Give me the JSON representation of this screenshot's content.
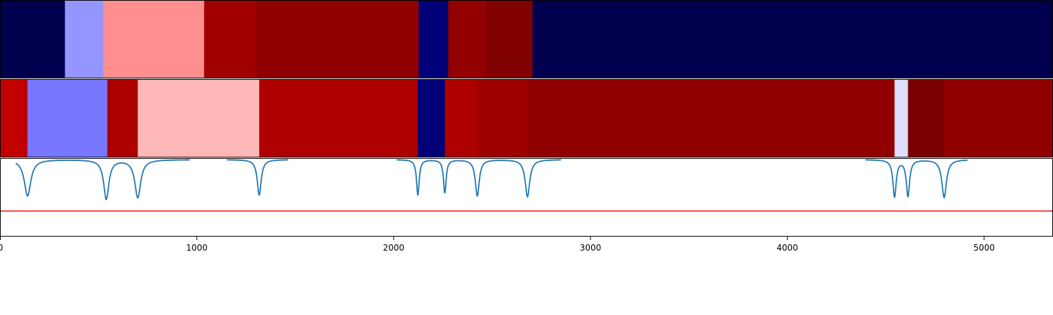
{
  "chart_data": {
    "type": "heatmap",
    "title": "",
    "xlabel": "",
    "ylabel": "",
    "xlim": [
      0,
      5350
    ],
    "x_ticks": [
      0,
      1000,
      2000,
      3000,
      4000,
      5000
    ],
    "x_tick_labels": [
      "0",
      "1000",
      "2000",
      "3000",
      "4000",
      "5000"
    ],
    "tracks": [
      {
        "kind": "segments",
        "segments": [
          {
            "start": 0,
            "end": 330,
            "color": "#00004f"
          },
          {
            "start": 330,
            "end": 525,
            "color": "#9595ff"
          },
          {
            "start": 525,
            "end": 1037,
            "color": "#ff8e8e"
          },
          {
            "start": 1037,
            "end": 1300,
            "color": "#a10000"
          },
          {
            "start": 1300,
            "end": 2127,
            "color": "#910000"
          },
          {
            "start": 2127,
            "end": 2277,
            "color": "#000078"
          },
          {
            "start": 2277,
            "end": 2470,
            "color": "#930000"
          },
          {
            "start": 2470,
            "end": 2705,
            "color": "#810000"
          },
          {
            "start": 2705,
            "end": 5350,
            "color": "#00004f"
          }
        ]
      },
      {
        "kind": "segments",
        "segments": [
          {
            "start": 0,
            "end": 140,
            "color": "#c20000"
          },
          {
            "start": 140,
            "end": 545,
            "color": "#7878ff"
          },
          {
            "start": 545,
            "end": 700,
            "color": "#ad0000"
          },
          {
            "start": 700,
            "end": 1317,
            "color": "#ffb8b8"
          },
          {
            "start": 1317,
            "end": 2123,
            "color": "#af0000"
          },
          {
            "start": 2123,
            "end": 2260,
            "color": "#000078"
          },
          {
            "start": 2260,
            "end": 2425,
            "color": "#af0000"
          },
          {
            "start": 2425,
            "end": 2680,
            "color": "#9e0000"
          },
          {
            "start": 2680,
            "end": 4545,
            "color": "#910000"
          },
          {
            "start": 4545,
            "end": 4613,
            "color": "#dedeff"
          },
          {
            "start": 4613,
            "end": 4797,
            "color": "#7b0000"
          },
          {
            "start": 4797,
            "end": 5350,
            "color": "#900000"
          }
        ]
      },
      {
        "kind": "line",
        "color": "#1f77b4",
        "ylim": [
          0,
          1
        ],
        "baseline": 1,
        "dips": [
          {
            "x": 140,
            "depth": 0.48,
            "width": 20
          },
          {
            "x": 540,
            "depth": 0.52,
            "width": 16
          },
          {
            "x": 700,
            "depth": 0.5,
            "width": 18
          },
          {
            "x": 1317,
            "depth": 0.47,
            "width": 12
          },
          {
            "x": 2123,
            "depth": 0.47,
            "width": 8
          },
          {
            "x": 2260,
            "depth": 0.44,
            "width": 8
          },
          {
            "x": 2425,
            "depth": 0.48,
            "width": 12
          },
          {
            "x": 2680,
            "depth": 0.49,
            "width": 14
          },
          {
            "x": 4545,
            "depth": 0.49,
            "width": 10
          },
          {
            "x": 4613,
            "depth": 0.48,
            "width": 10
          },
          {
            "x": 4797,
            "depth": 0.5,
            "width": 14
          }
        ],
        "threshold": {
          "y": 0.32,
          "color": "#ff0000"
        }
      }
    ],
    "grid": false,
    "legend": "none"
  }
}
